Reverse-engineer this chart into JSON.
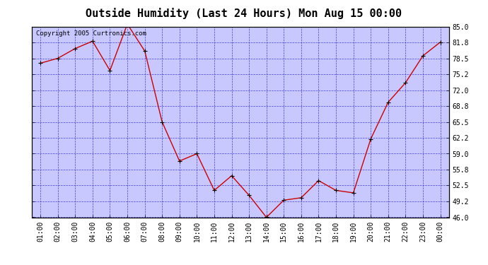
{
  "title": "Outside Humidity (Last 24 Hours) Mon Aug 15 00:00",
  "copyright": "Copyright 2005 Curtronics.com",
  "x_labels": [
    "01:00",
    "02:00",
    "03:00",
    "04:00",
    "05:00",
    "06:00",
    "07:00",
    "08:00",
    "09:00",
    "10:00",
    "11:00",
    "12:00",
    "13:00",
    "14:00",
    "15:00",
    "16:00",
    "17:00",
    "18:00",
    "19:00",
    "20:00",
    "21:00",
    "22:00",
    "23:00",
    "00:00"
  ],
  "y_values": [
    77.5,
    78.5,
    80.5,
    82.0,
    76.0,
    85.5,
    80.0,
    65.5,
    57.5,
    59.0,
    51.5,
    54.5,
    50.5,
    46.0,
    49.5,
    50.0,
    53.5,
    51.5,
    51.0,
    62.0,
    69.5,
    73.5,
    79.0,
    81.8
  ],
  "ylim": [
    46.0,
    85.0
  ],
  "yticks": [
    46.0,
    49.2,
    52.5,
    55.8,
    59.0,
    62.2,
    65.5,
    68.8,
    72.0,
    75.2,
    78.5,
    81.8,
    85.0
  ],
  "ytick_labels": [
    "46.0",
    "49.2",
    "52.5",
    "55.8",
    "59.0",
    "62.2",
    "65.5",
    "68.8",
    "72.0",
    "75.2",
    "78.5",
    "81.8",
    "85.0"
  ],
  "line_color": "#cc0000",
  "marker_color": "#000000",
  "plot_bg_color": "#c8c8ff",
  "grid_color": "#3333cc",
  "outer_bg_color": "#ffffff",
  "title_fontsize": 11,
  "copyright_fontsize": 6.5,
  "tick_fontsize": 7
}
